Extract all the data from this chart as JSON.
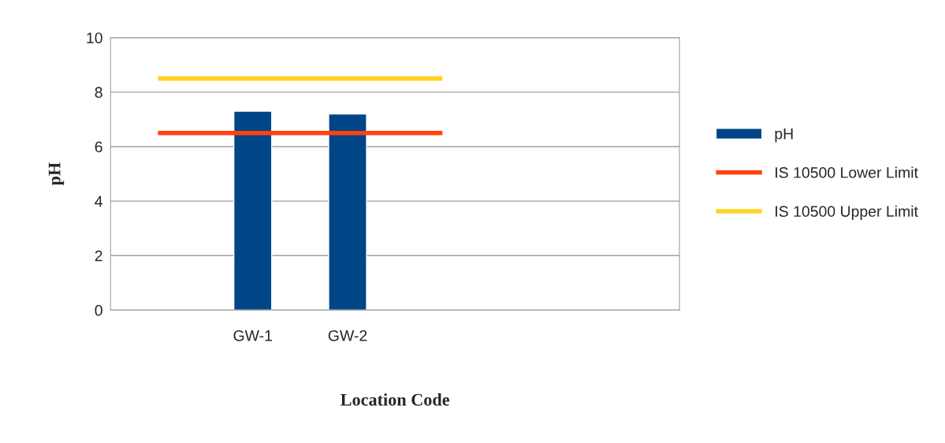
{
  "chart_data": {
    "type": "bar",
    "xlabel": "Location Code",
    "ylabel": "pH",
    "categories": [
      null,
      "GW-1",
      "GW-2",
      null,
      null,
      null
    ],
    "series": [
      {
        "name": "pH",
        "color": "#004586",
        "values": [
          null,
          7.3,
          7.2,
          null,
          null,
          null
        ]
      },
      {
        "name": "IS 10500 Lower Limit",
        "type": "line",
        "color": "#ff420e",
        "values": [
          6.5,
          6.5,
          6.5,
          6.5,
          null,
          null
        ]
      },
      {
        "name": "IS 10500 Upper Limit",
        "type": "line",
        "color": "#ffd320",
        "values": [
          8.5,
          8.5,
          8.5,
          8.5,
          null,
          null
        ]
      }
    ],
    "ylim": [
      0,
      10
    ],
    "yticks": [
      0,
      2,
      4,
      6,
      8,
      10
    ],
    "grid": "y",
    "legend": "right"
  }
}
